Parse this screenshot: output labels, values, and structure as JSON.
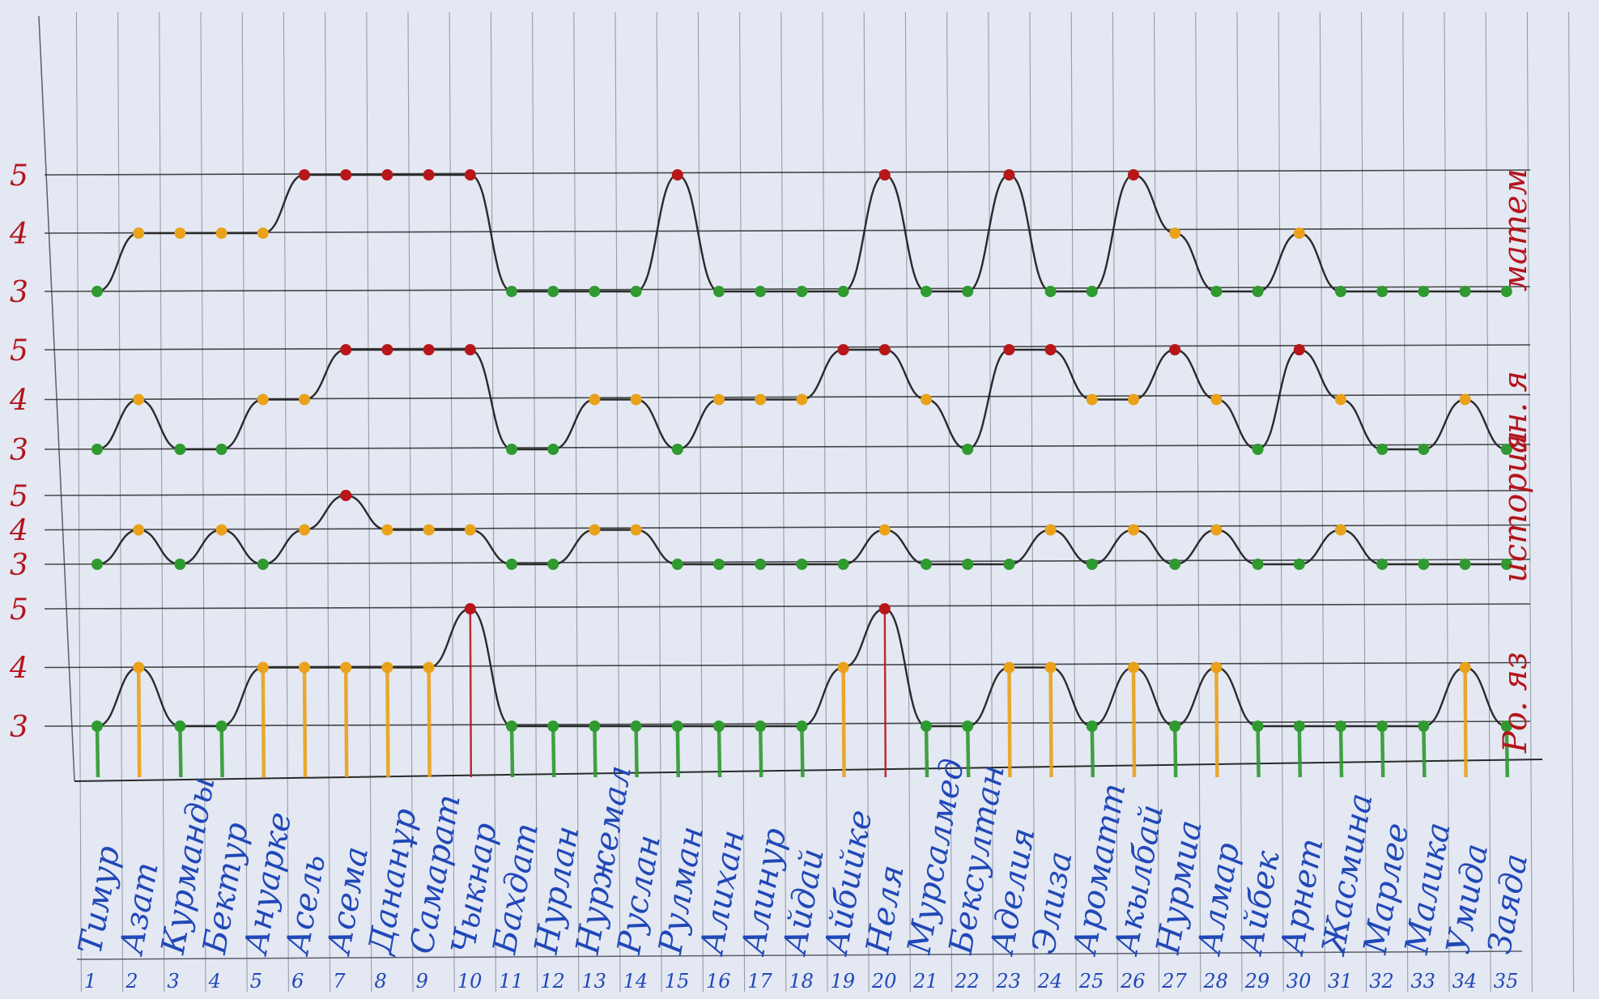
{
  "chart_data": [
    {
      "type": "line",
      "title": "матем",
      "y_ticks": [
        "5",
        "4",
        "3"
      ],
      "ylim": [
        3,
        5
      ],
      "x": [
        1,
        2,
        3,
        4,
        5,
        6,
        7,
        8,
        9,
        10,
        11,
        12,
        13,
        14,
        15,
        16,
        17,
        18,
        19,
        20,
        21,
        22,
        23,
        24,
        25,
        26,
        27,
        28,
        29,
        30,
        31,
        32,
        33,
        34,
        35
      ],
      "values": [
        3,
        4,
        4,
        4,
        4,
        5,
        5,
        5,
        5,
        5,
        3,
        3,
        3,
        3,
        5,
        3,
        3,
        3,
        3,
        5,
        3,
        3,
        5,
        3,
        3,
        5,
        4,
        3,
        3,
        4,
        3,
        3,
        3,
        3,
        3
      ]
    },
    {
      "type": "line",
      "title": "ан. я",
      "y_ticks": [
        "5",
        "4",
        "3"
      ],
      "ylim": [
        3,
        5
      ],
      "x": [
        1,
        2,
        3,
        4,
        5,
        6,
        7,
        8,
        9,
        10,
        11,
        12,
        13,
        14,
        15,
        16,
        17,
        18,
        19,
        20,
        21,
        22,
        23,
        24,
        25,
        26,
        27,
        28,
        29,
        30,
        31,
        32,
        33,
        34,
        35
      ],
      "values": [
        3,
        4,
        3,
        3,
        4,
        4,
        5,
        5,
        5,
        5,
        3,
        3,
        4,
        4,
        3,
        4,
        4,
        4,
        5,
        5,
        4,
        3,
        5,
        5,
        4,
        4,
        5,
        4,
        3,
        5,
        4,
        3,
        3,
        4,
        3
      ]
    },
    {
      "type": "line",
      "title": "история",
      "y_ticks": [
        "5",
        "4",
        "3"
      ],
      "ylim": [
        3,
        5
      ],
      "x": [
        1,
        2,
        3,
        4,
        5,
        6,
        7,
        8,
        9,
        10,
        11,
        12,
        13,
        14,
        15,
        16,
        17,
        18,
        19,
        20,
        21,
        22,
        23,
        24,
        25,
        26,
        27,
        28,
        29,
        30,
        31,
        32,
        33,
        34,
        35
      ],
      "values": [
        3,
        4,
        3,
        4,
        3,
        4,
        5,
        4,
        4,
        4,
        3,
        3,
        4,
        4,
        3,
        3,
        3,
        3,
        3,
        4,
        3,
        3,
        3,
        4,
        3,
        4,
        3,
        4,
        3,
        3,
        4,
        3,
        3,
        3,
        3
      ]
    },
    {
      "type": "line",
      "title": "Ро. яз",
      "y_ticks": [
        "5",
        "4",
        "3"
      ],
      "ylim": [
        3,
        5
      ],
      "x": [
        1,
        2,
        3,
        4,
        5,
        6,
        7,
        8,
        9,
        10,
        11,
        12,
        13,
        14,
        15,
        16,
        17,
        18,
        19,
        20,
        21,
        22,
        23,
        24,
        25,
        26,
        27,
        28,
        29,
        30,
        31,
        32,
        33,
        34,
        35
      ],
      "values": [
        3,
        4,
        3,
        3,
        4,
        4,
        4,
        4,
        4,
        5,
        3,
        3,
        3,
        3,
        3,
        3,
        3,
        3,
        4,
        5,
        3,
        3,
        4,
        4,
        3,
        4,
        3,
        4,
        3,
        3,
        3,
        3,
        3,
        4,
        3
      ]
    }
  ],
  "students": [
    {
      "num": "1",
      "name": "Тимур"
    },
    {
      "num": "2",
      "name": "Азат"
    },
    {
      "num": "3",
      "name": "Курманды"
    },
    {
      "num": "4",
      "name": "Бектур"
    },
    {
      "num": "5",
      "name": "Ануарке"
    },
    {
      "num": "6",
      "name": "Асель"
    },
    {
      "num": "7",
      "name": "Асема"
    },
    {
      "num": "8",
      "name": "Дананұр"
    },
    {
      "num": "9",
      "name": "Самарат"
    },
    {
      "num": "10",
      "name": "Чыкнар"
    },
    {
      "num": "11",
      "name": "Бахдат"
    },
    {
      "num": "12",
      "name": "Нурлан"
    },
    {
      "num": "13",
      "name": "Нуржемал"
    },
    {
      "num": "14",
      "name": "Руслан"
    },
    {
      "num": "15",
      "name": "Рулман"
    },
    {
      "num": "16",
      "name": "Алихан"
    },
    {
      "num": "17",
      "name": "Алинур"
    },
    {
      "num": "18",
      "name": "Айдай"
    },
    {
      "num": "19",
      "name": "Айбийке"
    },
    {
      "num": "20",
      "name": "Неля"
    },
    {
      "num": "21",
      "name": "Мурсалмед"
    },
    {
      "num": "22",
      "name": "Бексултан"
    },
    {
      "num": "23",
      "name": "Аделия"
    },
    {
      "num": "24",
      "name": "Элиза"
    },
    {
      "num": "25",
      "name": "Ароматт"
    },
    {
      "num": "26",
      "name": "Акылбай"
    },
    {
      "num": "27",
      "name": "Нурмиа"
    },
    {
      "num": "28",
      "name": "Алмар"
    },
    {
      "num": "29",
      "name": "Айбек"
    },
    {
      "num": "30",
      "name": "Арнет"
    },
    {
      "num": "31",
      "name": "Жасмина"
    },
    {
      "num": "32",
      "name": "Марлее"
    },
    {
      "num": "33",
      "name": "Малика"
    },
    {
      "num": "34",
      "name": "Умида"
    },
    {
      "num": "35",
      "name": "Заяда"
    }
  ],
  "colors": {
    "grade_5": "#b8171a",
    "grade_4": "#e9a21a",
    "grade_3": "#2e9a2f",
    "curve": "#2a2a2a",
    "labels": "#b3151b",
    "names": "#2048b8",
    "grid": "#5a5f6a"
  }
}
